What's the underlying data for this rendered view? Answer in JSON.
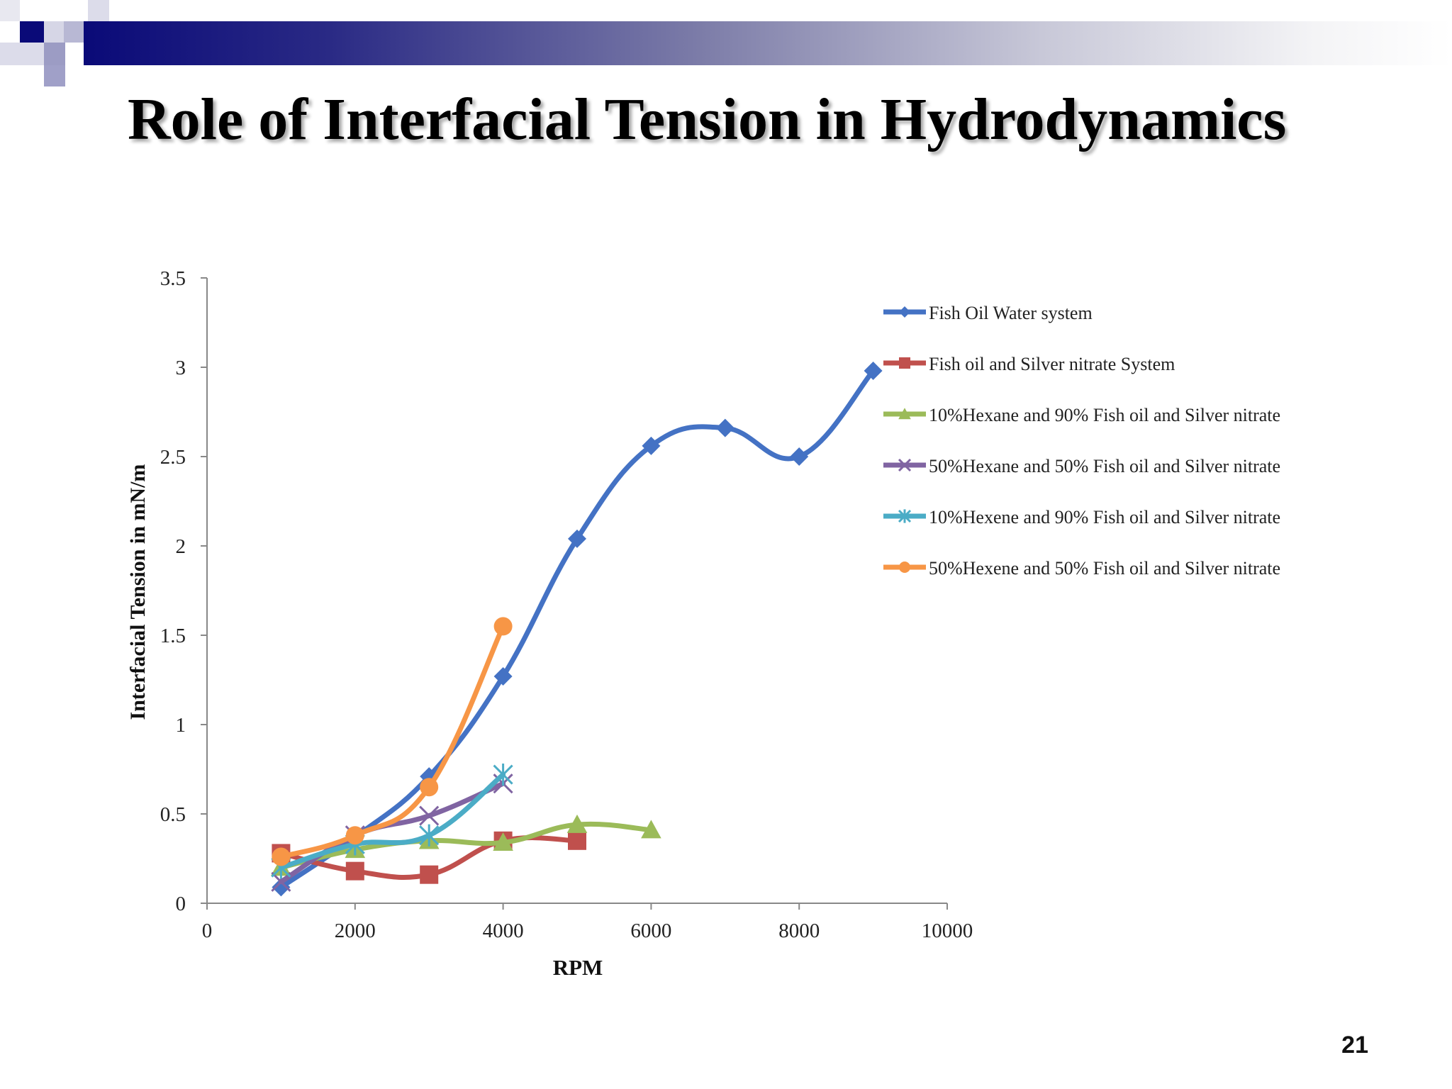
{
  "slide": {
    "title": "Role of Interfacial Tension in Hydrodynamics",
    "page_number": "21"
  },
  "colors": {
    "fish_oil_water": "#4472C4",
    "silver_nitrate": "#C0504D",
    "hexane10": "#9BBB59",
    "hexane50": "#8064A2",
    "hexene10": "#4BACC6",
    "hexene50": "#F79646"
  },
  "chart_data": {
    "type": "line",
    "title": "",
    "xlabel": "RPM",
    "ylabel": "Interfacial Tension in mN/m",
    "xlim": [
      0,
      10000
    ],
    "ylim": [
      0,
      3.5
    ],
    "x_ticks": [
      "0",
      "2000",
      "4000",
      "6000",
      "8000",
      "10000"
    ],
    "y_ticks": [
      "0",
      "0.5",
      "1",
      "1.5",
      "2",
      "2.5",
      "3",
      "3.5"
    ],
    "grid": false,
    "legend_position": "top-right",
    "series": [
      {
        "name": "Fish Oil Water system",
        "color": "#4472C4",
        "marker": "diamond",
        "x": [
          1000,
          2000,
          3000,
          4000,
          5000,
          6000,
          7000,
          8000,
          9000
        ],
        "y": [
          0.09,
          0.37,
          0.71,
          1.27,
          2.04,
          2.56,
          2.66,
          2.5,
          2.98
        ]
      },
      {
        "name": "Fish oil and Silver nitrate System",
        "color": "#C0504D",
        "marker": "square",
        "x": [
          1000,
          2000,
          3000,
          4000,
          5000
        ],
        "y": [
          0.28,
          0.18,
          0.16,
          0.35,
          0.35
        ]
      },
      {
        "name": "10%Hexane and 90% Fish oil and Silver nitrate",
        "color": "#9BBB59",
        "marker": "triangle",
        "x": [
          1000,
          2000,
          3000,
          4000,
          5000,
          6000
        ],
        "y": [
          0.2,
          0.3,
          0.35,
          0.34,
          0.44,
          0.41
        ]
      },
      {
        "name": "50%Hexane and 50% Fish oil and Silver nitrate",
        "color": "#8064A2",
        "marker": "x",
        "x": [
          1000,
          2000,
          3000,
          4000
        ],
        "y": [
          0.12,
          0.38,
          0.49,
          0.67
        ]
      },
      {
        "name": "10%Hexene and 90% Fish oil and Silver nitrate",
        "color": "#4BACC6",
        "marker": "star",
        "x": [
          1000,
          2000,
          3000,
          4000
        ],
        "y": [
          0.2,
          0.33,
          0.38,
          0.72
        ]
      },
      {
        "name": "50%Hexene and 50% Fish oil and Silver nitrate",
        "color": "#F79646",
        "marker": "circle",
        "x": [
          1000,
          2000,
          3000,
          4000
        ],
        "y": [
          0.26,
          0.38,
          0.65,
          1.55
        ]
      }
    ]
  }
}
